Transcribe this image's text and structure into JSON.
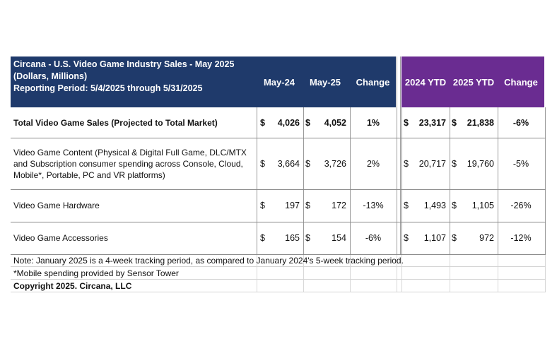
{
  "title_lines": [
    "Circana - U.S. Video Game Industry Sales - May 2025",
    "(Dollars, Millions)",
    "Reporting Period: 5/4/2025 through 5/31/2025"
  ],
  "columns": {
    "may24": "May-24",
    "may25": "May-25",
    "change1": "Change",
    "ytd24": "2024 YTD",
    "ytd25": "2025 YTD",
    "change2": "Change"
  },
  "currency_symbol": "$",
  "rows": [
    {
      "label_lines": [
        "Total Video Game Sales (Projected to Total Market)"
      ],
      "may24": "4,026",
      "may25": "4,052",
      "change1": "1%",
      "ytd24": "23,317",
      "ytd25": "21,838",
      "change2": "-6%"
    },
    {
      "label_lines": [
        "Video Game Content (Physical & Digital Full Game, DLC/MTX",
        "and Subscription consumer spending across Console, Cloud,",
        "Mobile*, Portable, PC and VR platforms)"
      ],
      "may24": "3,664",
      "may25": "3,726",
      "change1": "2%",
      "ytd24": "20,717",
      "ytd25": "19,760",
      "change2": "-5%"
    },
    {
      "label_lines": [
        "Video Game Hardware"
      ],
      "may24": "197",
      "may25": "172",
      "change1": "-13%",
      "ytd24": "1,493",
      "ytd25": "1,105",
      "change2": "-26%"
    },
    {
      "label_lines": [
        "Video Game Accessories"
      ],
      "may24": "165",
      "may25": "154",
      "change1": "-6%",
      "ytd24": "1,107",
      "ytd25": "972",
      "change2": "-12%"
    }
  ],
  "notes": [
    "Note: January 2025 is a 4-week tracking period, as compared to January 2024's 5-week tracking period.",
    "*Mobile spending provided by Sensor Tower",
    "Copyright 2025. Circana, LLC"
  ],
  "colors": {
    "header_blue": "#1f3a6b",
    "header_purple": "#6a2c91"
  },
  "chart_data": {
    "type": "table",
    "title": "Circana - U.S. Video Game Industry Sales - May 2025",
    "subtitle": "(Dollars, Millions)",
    "headers": [
      "",
      "May-24",
      "May-25",
      "Change",
      "2024 YTD",
      "2025 YTD",
      "Change"
    ],
    "rows": [
      [
        "Total Video Game Sales (Projected to Total Market)",
        4026,
        4052,
        "1%",
        23317,
        21838,
        "-6%"
      ],
      [
        "Video Game Content (Physical & Digital Full Game, DLC/MTX and Subscription consumer spending across Console, Cloud, Mobile*, Portable, PC and VR platforms)",
        3664,
        3726,
        "2%",
        20717,
        19760,
        "-5%"
      ],
      [
        "Video Game Hardware",
        197,
        172,
        "-13%",
        1493,
        1105,
        "-26%"
      ],
      [
        "Video Game Accessories",
        165,
        154,
        "-6%",
        1107,
        972,
        "-12%"
      ]
    ]
  }
}
